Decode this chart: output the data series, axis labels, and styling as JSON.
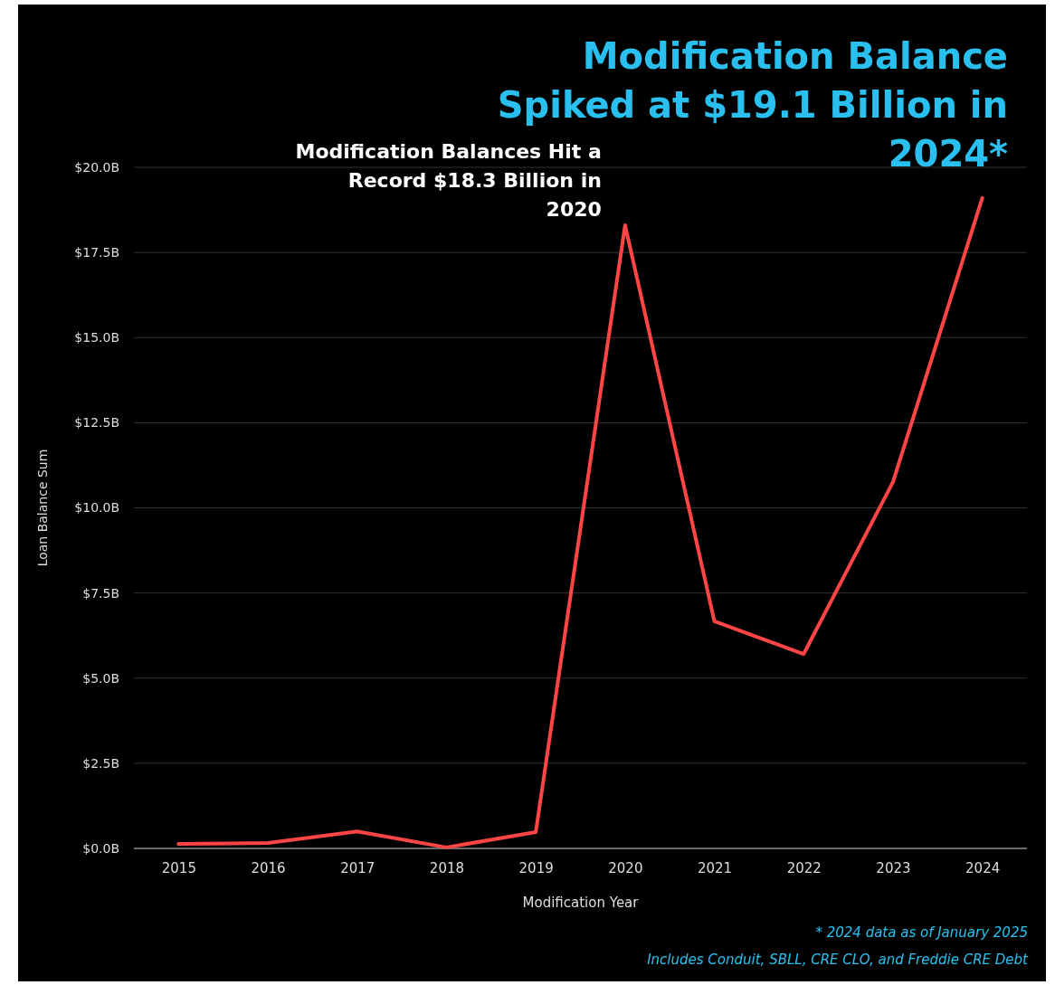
{
  "chart_data": {
    "type": "line",
    "title": "Modification Balance Spiked at $19.1 Billion in 2024*",
    "xlabel": "Modification Year",
    "ylabel": "Loan Balance Sum",
    "categories": [
      "2015",
      "2016",
      "2017",
      "2018",
      "2019",
      "2020",
      "2021",
      "2022",
      "2023",
      "2024"
    ],
    "series": [
      {
        "color": "#ff4545",
        "values": [
          0.13,
          0.16,
          0.5,
          0.03,
          0.48,
          18.3,
          6.67,
          5.71,
          10.76,
          19.1
        ]
      }
    ],
    "ylim": [
      0,
      20
    ],
    "yticks": [
      {
        "value": 0,
        "label": "$0.0B"
      },
      {
        "value": 2.5,
        "label": "$2.5B"
      },
      {
        "value": 5,
        "label": "$5.0B"
      },
      {
        "value": 7.5,
        "label": "$7.5B"
      },
      {
        "value": 10,
        "label": "$10.0B"
      },
      {
        "value": 12.5,
        "label": "$12.5B"
      },
      {
        "value": 15,
        "label": "$15.0B"
      },
      {
        "value": 17.5,
        "label": "$17.5B"
      },
      {
        "value": 20,
        "label": "$20.0B"
      }
    ],
    "grid": "y",
    "marker": "none",
    "line_style": "solid",
    "annotations": [
      {
        "text": "Modification Balances Hit a Record $18.3 Billion in 2020",
        "x": "2020",
        "y": 18.3
      },
      "* 2024 data as of January 2025",
      "Includes Conduit, SBLL, CRE CLO, and Freddie CRE Debt"
    ]
  }
}
